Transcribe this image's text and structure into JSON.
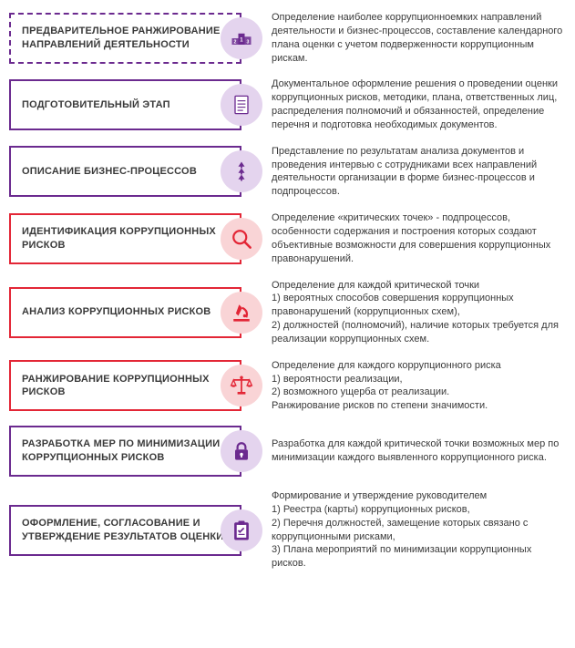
{
  "colors": {
    "purple": "#6b2a8f",
    "purple_light": "#e4d4ee",
    "red": "#e32636",
    "red_light": "#f9d4d6",
    "text": "#3a3a3a"
  },
  "steps": [
    {
      "title": "ПРЕДВАРИТЕЛЬНОЕ РАНЖИРОВАНИЕ НАПРАВЛЕНИЙ ДЕЯТЕЛЬНОСТИ",
      "desc": "Определение наиболее коррупционноемких направлений деятельности и бизнес-процессов, составление календарного плана оценки с учетом подверженности коррупционным рискам.",
      "color": "purple",
      "border": "dashed",
      "icon": "podium"
    },
    {
      "title": "ПОДГОТОВИТЕЛЬНЫЙ ЭТАП",
      "desc": "Документальное оформление решения о проведении оценки коррупционных рисков, методики, плана, ответственных лиц, распределения полномочий и обязанностей, определение перечня и подготовка необходимых документов.",
      "color": "purple",
      "border": "solid",
      "icon": "document"
    },
    {
      "title": "ОПИСАНИЕ БИЗНЕС-ПРОЦЕССОВ",
      "desc": "Представление по результатам анализа документов и проведения интервью с сотрудниками всех направлений деятельности организации в форме бизнес-процессов и подпроцессов.",
      "color": "purple",
      "border": "solid",
      "icon": "arrows"
    },
    {
      "title": "ИДЕНТИФИКАЦИЯ КОРРУПЦИОННЫХ РИСКОВ",
      "desc": "Определение «критических точек» - подпроцессов, особенности содержания и построения которых создают объективные возможности для совершения коррупционных правонарушений.",
      "color": "red",
      "border": "solid",
      "icon": "magnifier"
    },
    {
      "title": "АНАЛИЗ КОРРУПЦИОННЫХ РИСКОВ",
      "desc": "Определение для каждой критической точки\n1) вероятных способов совершения коррупционных правонарушений (коррупционных схем),\n2) должностей (полномочий), наличие которых требуется для реализации коррупционных схем.",
      "color": "red",
      "border": "solid",
      "icon": "microscope"
    },
    {
      "title": "РАНЖИРОВАНИЕ КОРРУПЦИОННЫХ РИСКОВ",
      "desc": "Определение для каждого коррупционного риска\n1) вероятности реализации,\n2) возможного ущерба от реализации.\nРанжирование рисков по степени значимости.",
      "color": "red",
      "border": "solid",
      "icon": "scales"
    },
    {
      "title": "РАЗРАБОТКА МЕР ПО МИНИМИЗАЦИИ КОРРУПЦИОННЫХ РИСКОВ",
      "desc": "Разработка для каждой критической точки возможных мер по минимизации каждого выявленного коррупционного риска.",
      "color": "purple",
      "border": "solid",
      "icon": "lock"
    },
    {
      "title": "ОФОРМЛЕНИЕ, СОГЛАСОВАНИЕ И УТВЕРЖДЕНИЕ РЕЗУЛЬТАТОВ ОЦЕНКИ",
      "desc": "Формирование и утверждение руководителем\n1) Реестра (карты) коррупционных рисков,\n2) Перечня должностей, замещение которых связано с коррупционными рисками,\n3) Плана мероприятий по минимизации коррупционных рисков.",
      "color": "purple",
      "border": "solid",
      "icon": "clipboard"
    }
  ]
}
